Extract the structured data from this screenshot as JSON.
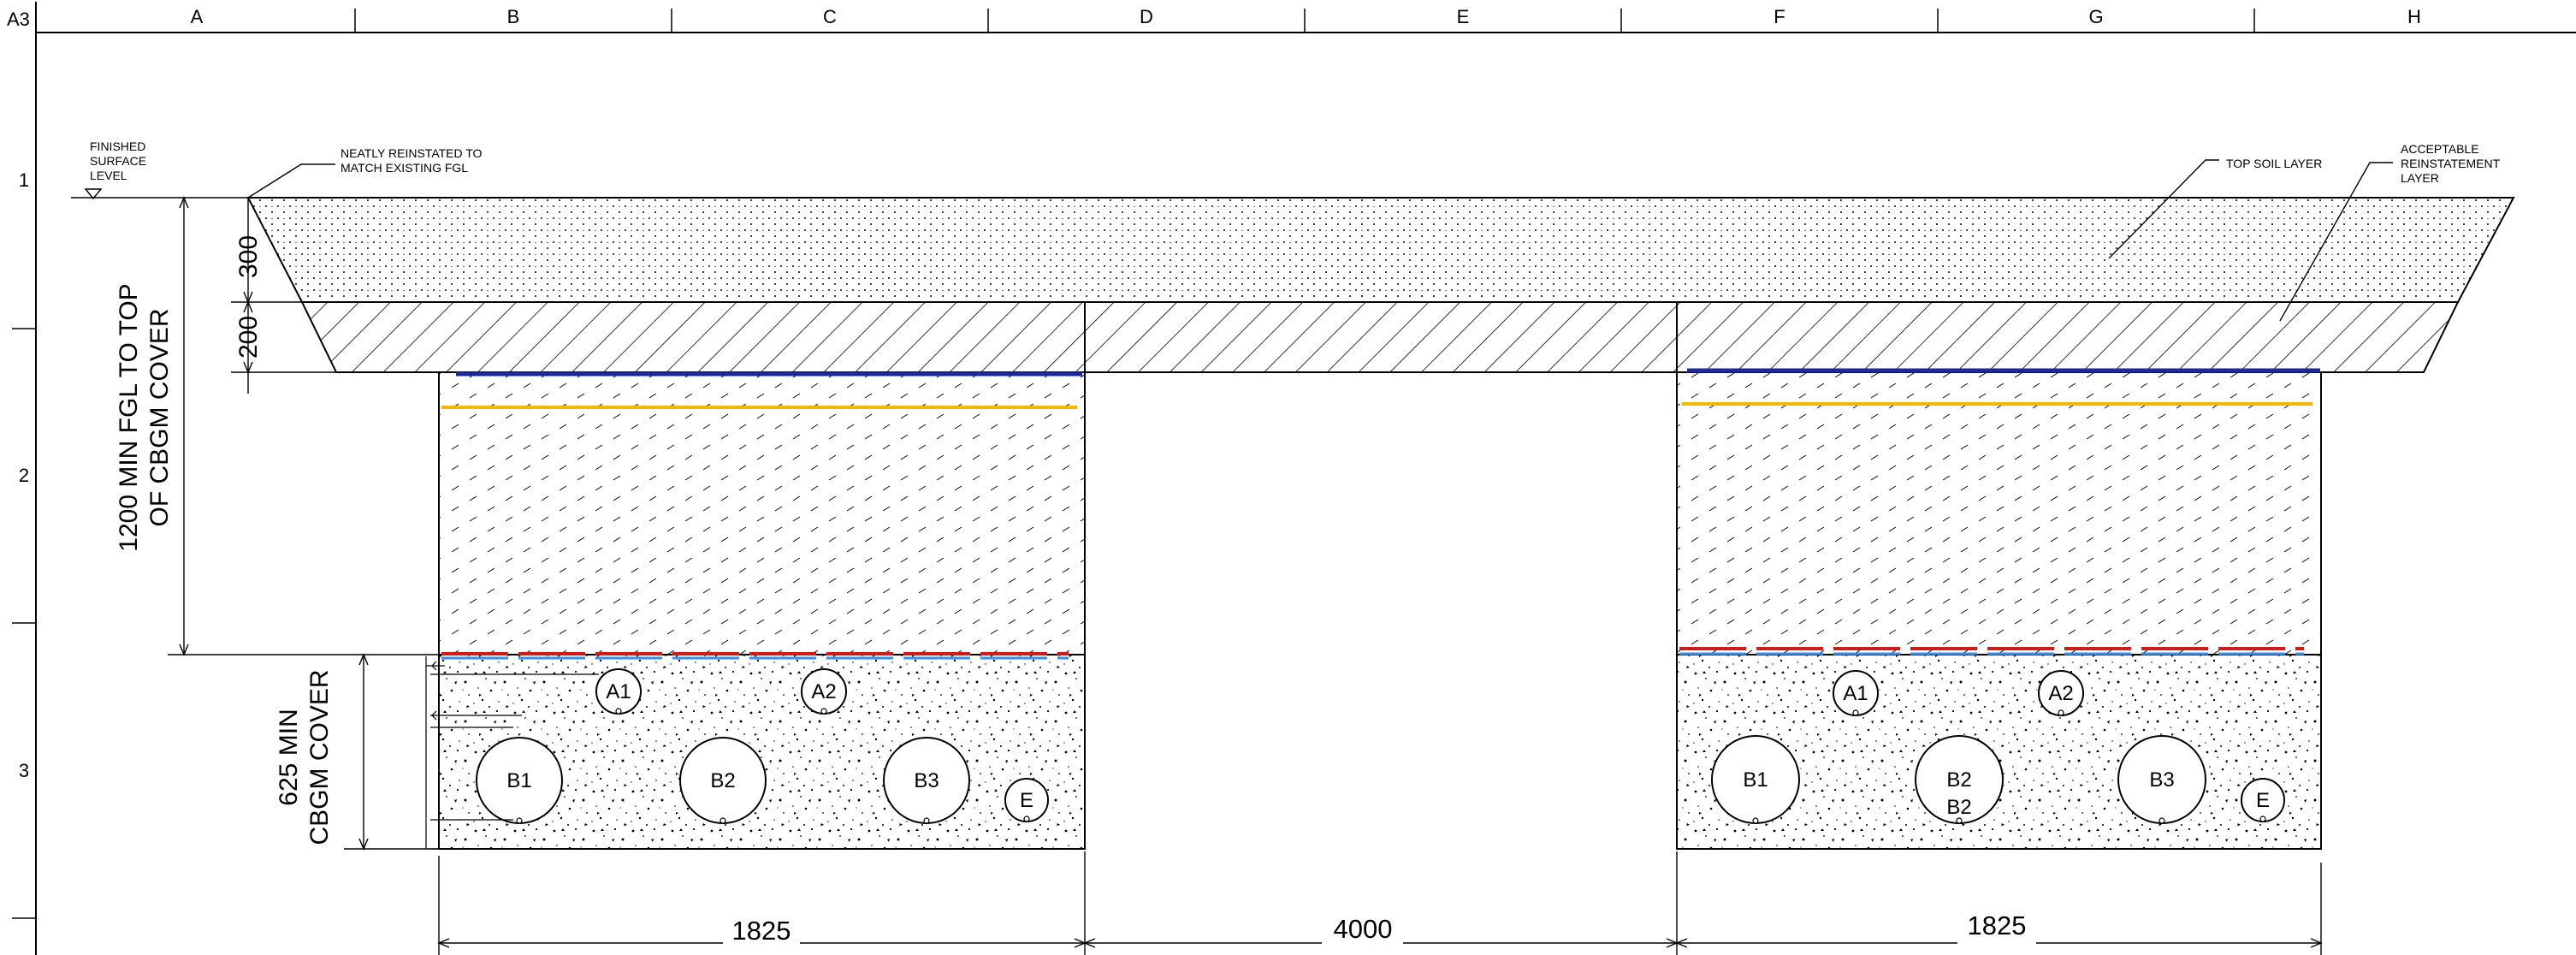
{
  "sheet_size": "A3",
  "columns": [
    "A",
    "B",
    "C",
    "D",
    "E",
    "F",
    "G",
    "H"
  ],
  "rows": [
    "1",
    "2",
    "3"
  ],
  "annotations": {
    "fsl": [
      "FINISHED",
      "SURFACE",
      "LEVEL"
    ],
    "reinstated": [
      "NEATLY REINSTATED TO",
      "MATCH EXISTING FGL"
    ],
    "topsoil": "TOP SOIL LAYER",
    "reinstatement": [
      "ACCEPTABLE",
      "REINSTATEMENT",
      "LAYER"
    ]
  },
  "dimensions": {
    "topsoil_depth": "300",
    "reinstatement_depth": "200",
    "fgl_to_cbgm": [
      "1200 MIN FGL TO TOP",
      "OF CBGM COVER"
    ],
    "cbgm_cover": [
      "625 MIN",
      "CBGM COVER"
    ],
    "left_width": "1825",
    "gap": "4000",
    "right_width": "1825"
  },
  "left_trench_cables": [
    "A1",
    "A2",
    "B1",
    "B2",
    "B3",
    "E"
  ],
  "right_trench_cables": [
    "A1",
    "A2",
    "B1",
    "B2",
    "B3",
    "E"
  ],
  "right_extra_label": "B2",
  "colors": {
    "blue_tape": "#1a2a9c",
    "yellow_tape": "#f2b705",
    "red_tape": "#d11a1a",
    "light_blue_tape": "#3a8fe8",
    "line": "#000000"
  }
}
